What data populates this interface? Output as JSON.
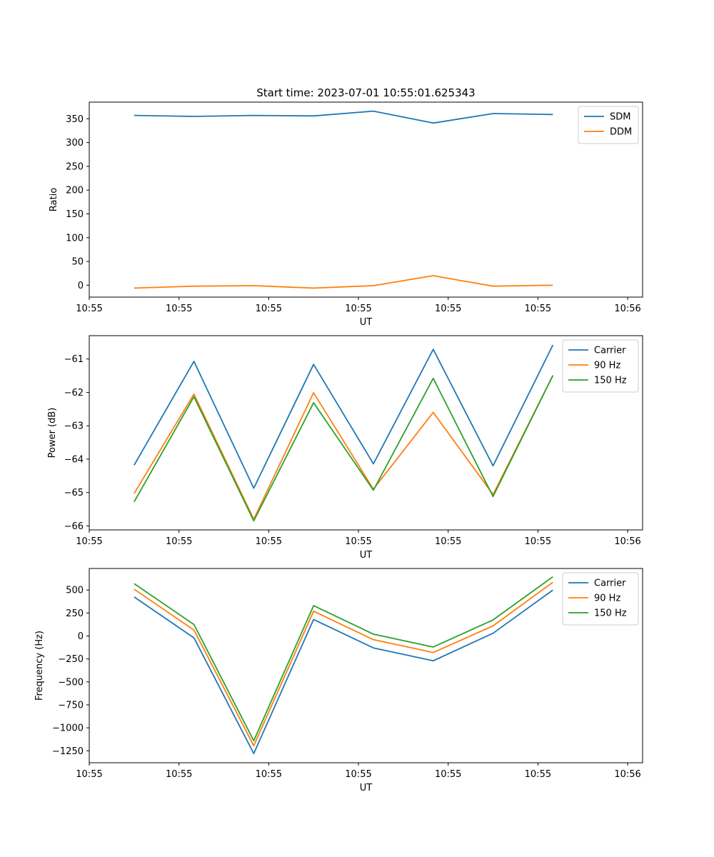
{
  "chart_data": [
    {
      "type": "line",
      "title": "Start time: 2023-07-01 10:55:01.625343",
      "xlabel": "UT",
      "ylabel": "Ratio",
      "x": [
        0,
        1,
        2,
        3,
        4,
        5,
        6,
        7
      ],
      "xlim": [
        -0.75,
        8.5
      ],
      "xticks": [
        {
          "value": -0.75,
          "label": "10:55"
        },
        {
          "value": 0.75,
          "label": "10:55"
        },
        {
          "value": 2.25,
          "label": "10:55"
        },
        {
          "value": 3.75,
          "label": "10:55"
        },
        {
          "value": 5.25,
          "label": "10:55"
        },
        {
          "value": 6.75,
          "label": "10:55"
        },
        {
          "value": 8.25,
          "label": "10:56"
        }
      ],
      "ylim": [
        -25,
        385
      ],
      "yticks": [
        0,
        50,
        100,
        150,
        200,
        250,
        300,
        350
      ],
      "legend_position": "top-right",
      "series": [
        {
          "name": "SDM",
          "color": "#1f77b4",
          "values": [
            357,
            355,
            357,
            356,
            366,
            341,
            361,
            359
          ]
        },
        {
          "name": "DDM",
          "color": "#ff7f0e",
          "values": [
            -6,
            -2,
            -1,
            -6,
            -1,
            20,
            -2,
            0
          ]
        }
      ]
    },
    {
      "type": "line",
      "title": "",
      "xlabel": "UT",
      "ylabel": "Power (dB)",
      "x": [
        0,
        1,
        2,
        3,
        4,
        5,
        6,
        7
      ],
      "xlim": [
        -0.75,
        8.5
      ],
      "xticks": [
        {
          "value": -0.75,
          "label": "10:55"
        },
        {
          "value": 0.75,
          "label": "10:55"
        },
        {
          "value": 2.25,
          "label": "10:55"
        },
        {
          "value": 3.75,
          "label": "10:55"
        },
        {
          "value": 5.25,
          "label": "10:55"
        },
        {
          "value": 6.75,
          "label": "10:55"
        },
        {
          "value": 8.25,
          "label": "10:56"
        }
      ],
      "ylim": [
        -66.12,
        -60.3
      ],
      "yticks": [
        -66,
        -65,
        -64,
        -63,
        -62,
        -61
      ],
      "ytick_labels": [
        "−66",
        "−65",
        "−64",
        "−63",
        "−62",
        "−61"
      ],
      "legend_position": "top-right",
      "series": [
        {
          "name": "Carrier",
          "color": "#1f77b4",
          "values": [
            -64.18,
            -61.07,
            -64.87,
            -61.16,
            -64.14,
            -60.71,
            -64.2,
            -60.58
          ]
        },
        {
          "name": "90 Hz",
          "color": "#ff7f0e",
          "values": [
            -65.03,
            -62.05,
            -65.8,
            -62.01,
            -64.9,
            -62.6,
            -65.06,
            -61.5
          ]
        },
        {
          "name": "150 Hz",
          "color": "#2ca02c",
          "values": [
            -65.28,
            -62.13,
            -65.85,
            -62.31,
            -64.93,
            -61.58,
            -65.12,
            -61.49
          ]
        }
      ]
    },
    {
      "type": "line",
      "title": "",
      "xlabel": "UT",
      "ylabel": "Frequency (Hz)",
      "x": [
        0,
        1,
        2,
        3,
        4,
        5,
        6,
        7
      ],
      "xlim": [
        -0.75,
        8.5
      ],
      "xticks": [
        {
          "value": -0.75,
          "label": "10:55"
        },
        {
          "value": 0.75,
          "label": "10:55"
        },
        {
          "value": 2.25,
          "label": "10:55"
        },
        {
          "value": 3.75,
          "label": "10:55"
        },
        {
          "value": 5.25,
          "label": "10:55"
        },
        {
          "value": 6.75,
          "label": "10:55"
        },
        {
          "value": 8.25,
          "label": "10:56"
        }
      ],
      "ylim": [
        -1380,
        735
      ],
      "yticks": [
        -1250,
        -1000,
        -750,
        -500,
        -250,
        0,
        250,
        500
      ],
      "ytick_labels": [
        "−1250",
        "−1000",
        "−750",
        "−500",
        "−250",
        "0",
        "250",
        "500"
      ],
      "legend_position": "top-right",
      "series": [
        {
          "name": "Carrier",
          "color": "#1f77b4",
          "values": [
            425,
            -20,
            -1280,
            180,
            -130,
            -270,
            30,
            500
          ]
        },
        {
          "name": "90 Hz",
          "color": "#ff7f0e",
          "values": [
            510,
            65,
            -1195,
            270,
            -40,
            -180,
            110,
            585
          ]
        },
        {
          "name": "150 Hz",
          "color": "#2ca02c",
          "values": [
            570,
            125,
            -1140,
            330,
            20,
            -120,
            175,
            645
          ]
        }
      ]
    }
  ]
}
